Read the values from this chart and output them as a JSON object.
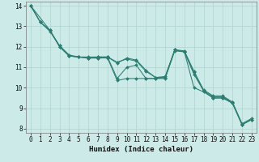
{
  "title": "",
  "xlabel": "Humidex (Indice chaleur)",
  "bg_color": "#cceae7",
  "grid_color": "#aed4d0",
  "line_color": "#2d7d72",
  "xlim": [
    -0.5,
    23.5
  ],
  "ylim": [
    7.8,
    14.2
  ],
  "xticks": [
    0,
    1,
    2,
    3,
    4,
    5,
    6,
    7,
    8,
    9,
    10,
    11,
    12,
    13,
    14,
    15,
    16,
    17,
    18,
    19,
    20,
    21,
    22,
    23
  ],
  "yticks": [
    8,
    9,
    10,
    11,
    12,
    13,
    14
  ],
  "series": [
    {
      "x": [
        0,
        1,
        2,
        3,
        4,
        5,
        6,
        7,
        8,
        9,
        10,
        11,
        12,
        13,
        14,
        15,
        16,
        17,
        18,
        19,
        20,
        21,
        22,
        23
      ],
      "y": [
        14.0,
        13.2,
        12.8,
        12.0,
        11.55,
        11.5,
        11.45,
        11.45,
        11.5,
        11.2,
        11.45,
        11.35,
        10.85,
        10.5,
        10.55,
        11.85,
        11.8,
        10.8,
        9.9,
        9.6,
        9.6,
        9.3,
        8.25,
        8.5
      ]
    },
    {
      "x": [
        0,
        1,
        2,
        3,
        4,
        5,
        6,
        7,
        8,
        9,
        10,
        11,
        12,
        13,
        14,
        15,
        16,
        17,
        18,
        19,
        20,
        21,
        22,
        23
      ],
      "y": [
        14.0,
        13.2,
        12.75,
        12.05,
        11.6,
        11.5,
        11.5,
        11.5,
        11.5,
        11.25,
        11.4,
        11.3,
        10.8,
        10.5,
        10.5,
        11.85,
        11.75,
        10.75,
        9.85,
        9.55,
        9.55,
        9.3,
        8.2,
        8.45
      ]
    },
    {
      "x": [
        0,
        2,
        3,
        4,
        5,
        6,
        7,
        8,
        9,
        10,
        11,
        12,
        13,
        14,
        15,
        16,
        17,
        18,
        19,
        20,
        21,
        22,
        23
      ],
      "y": [
        14.0,
        12.8,
        12.0,
        11.55,
        11.5,
        11.45,
        11.5,
        11.5,
        10.45,
        11.0,
        11.1,
        10.45,
        10.45,
        10.5,
        11.85,
        11.75,
        10.0,
        9.8,
        9.5,
        9.5,
        9.25,
        8.2,
        8.45
      ]
    },
    {
      "x": [
        0,
        1,
        2,
        3,
        4,
        5,
        6,
        7,
        8,
        9,
        10,
        11,
        12,
        13,
        14,
        15,
        16,
        17,
        18,
        19,
        20,
        21,
        22,
        23
      ],
      "y": [
        14.0,
        13.2,
        12.8,
        12.05,
        11.55,
        11.5,
        11.45,
        11.45,
        11.45,
        10.35,
        10.45,
        10.45,
        10.45,
        10.45,
        10.45,
        11.8,
        11.75,
        10.65,
        9.85,
        9.5,
        9.5,
        9.25,
        8.2,
        8.45
      ]
    }
  ]
}
